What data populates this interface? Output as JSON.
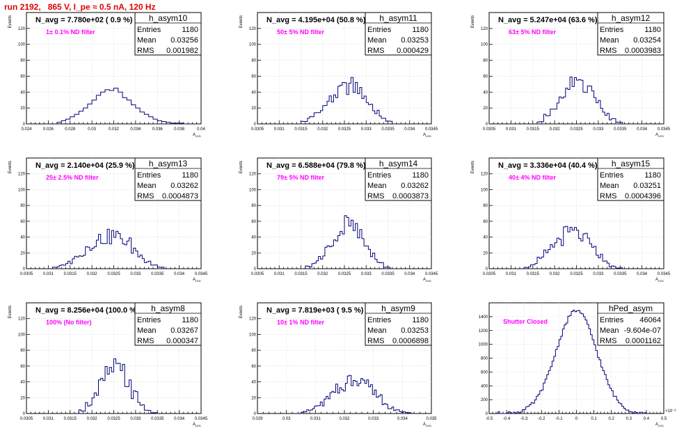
{
  "page": {
    "title": "run 2192,   865 V, I_pe ≈ 0.5 nA, 120 Hz"
  },
  "colors": {
    "title": "#e00000",
    "histogram": "#00007a",
    "annotation": "#ff00ff",
    "grid": "#c8c8c8"
  },
  "chart_data": [
    {
      "type": "bar",
      "name": "h_asym10",
      "title": "N_avg = 7.780e+02 ( 0.9 %)",
      "annotation": "1± 0.1% ND filter",
      "xlabel": "A_LED",
      "ylabel": "Events",
      "xlim": [
        0.024,
        0.04
      ],
      "ylim": [
        0,
        140
      ],
      "xticks": [
        "0.024",
        "0.026",
        "0.028",
        "0.03",
        "0.032",
        "0.034",
        "0.036",
        "0.038",
        "0.04"
      ],
      "yticks": [
        "0",
        "20",
        "40",
        "60",
        "80",
        "100",
        "120"
      ],
      "x_scale_exponent": "",
      "stats": {
        "entries": "1180",
        "mean": "0.03256",
        "rms": "0.001982"
      },
      "bin_edges": [
        0.0268,
        0.0272,
        0.0276,
        0.028,
        0.0284,
        0.0288,
        0.0292,
        0.0296,
        0.03,
        0.0304,
        0.0308,
        0.0312,
        0.0316,
        0.032,
        0.0324,
        0.0328,
        0.0332,
        0.0336,
        0.034,
        0.0344,
        0.0348,
        0.0352,
        0.0356,
        0.036,
        0.0364,
        0.0368,
        0.0372,
        0.0376,
        0.038,
        0.0384,
        0.0388
      ],
      "counts": [
        2,
        4,
        6,
        9,
        12,
        16,
        20,
        25,
        30,
        36,
        40,
        43,
        42,
        45,
        40,
        33,
        30,
        24,
        20,
        15,
        12,
        9,
        6,
        4,
        3,
        2,
        1,
        1,
        1,
        0
      ]
    },
    {
      "type": "bar",
      "name": "h_asym11",
      "title": "N_avg = 4.195e+04 (50.8 %)",
      "annotation": "50± 5% ND filter",
      "xlabel": "A_LED",
      "ylabel": "Events",
      "xlim": [
        0.0305,
        0.0345
      ],
      "ylim": [
        0,
        140
      ],
      "xticks": [
        "0.0305",
        "0.031",
        "0.0315",
        "0.032",
        "0.0325",
        "0.033",
        "0.0335",
        "0.034",
        "0.0345"
      ],
      "yticks": [
        "0",
        "20",
        "40",
        "60",
        "80",
        "100",
        "120"
      ],
      "x_scale_exponent": "",
      "stats": {
        "entries": "1180",
        "mean": "0.03253",
        "rms": "0.000429"
      },
      "bin_edges": [
        0.0315,
        0.03165,
        0.0318,
        0.03195,
        0.0321,
        0.03225,
        0.0324,
        0.03255,
        0.0327,
        0.03285,
        0.033,
        0.03315,
        0.0333,
        0.03345,
        0.0336
      ],
      "counts": [
        3,
        8,
        14,
        22,
        30,
        38,
        44,
        48,
        46,
        38,
        26,
        16,
        8,
        3
      ],
      "spiky": true
    },
    {
      "type": "bar",
      "name": "h_asym12",
      "title": "N_avg = 5.247e+04 (63.6 %)",
      "annotation": "63± 5% ND filter",
      "xlabel": "A_LED",
      "ylabel": "Events",
      "xlim": [
        0.0305,
        0.0345
      ],
      "ylim": [
        0,
        140
      ],
      "xticks": [
        "0.0305",
        "0.031",
        "0.0315",
        "0.032",
        "0.0325",
        "0.033",
        "0.0335",
        "0.034",
        "0.0345"
      ],
      "yticks": [
        "0",
        "20",
        "40",
        "60",
        "80",
        "100",
        "120"
      ],
      "x_scale_exponent": "",
      "stats": {
        "entries": "1180",
        "mean": "0.03254",
        "rms": "0.0003983"
      },
      "bin_edges": [
        0.0316,
        0.03175,
        0.0319,
        0.03205,
        0.0322,
        0.03235,
        0.0325,
        0.03265,
        0.0328,
        0.03295,
        0.0331,
        0.03325,
        0.0334,
        0.03355
      ],
      "counts": [
        3,
        10,
        18,
        28,
        40,
        48,
        55,
        50,
        40,
        26,
        14,
        6,
        2
      ],
      "spiky": true
    },
    {
      "type": "bar",
      "name": "h_asym13",
      "title": "N_avg = 2.140e+04 (25.9 %)",
      "annotation": "25± 2.5% ND filter",
      "xlabel": "A_LED",
      "ylabel": "Events",
      "xlim": [
        0.0305,
        0.0345
      ],
      "ylim": [
        0,
        140
      ],
      "xticks": [
        "0.0305",
        "0.031",
        "0.0315",
        "0.032",
        "0.0325",
        "0.033",
        "0.0335",
        "0.034",
        "0.0345"
      ],
      "yticks": [
        "0",
        "20",
        "40",
        "60",
        "80",
        "100",
        "120"
      ],
      "x_scale_exponent": "",
      "stats": {
        "entries": "1180",
        "mean": "0.03262",
        "rms": "0.0004873"
      },
      "bin_edges": [
        0.0311,
        0.03125,
        0.0314,
        0.03155,
        0.0317,
        0.03185,
        0.032,
        0.03215,
        0.0323,
        0.03245,
        0.0326,
        0.03275,
        0.0329,
        0.03305,
        0.0332,
        0.03335,
        0.0335,
        0.03365
      ],
      "counts": [
        2,
        4,
        8,
        14,
        20,
        28,
        34,
        38,
        40,
        42,
        38,
        32,
        24,
        16,
        10,
        5,
        2
      ],
      "spiky": true
    },
    {
      "type": "bar",
      "name": "h_asym14",
      "title": "N_avg = 6.588e+04 (79.8 %)",
      "annotation": "79± 5% ND filter",
      "xlabel": "A_LED",
      "ylabel": "Events",
      "xlim": [
        0.0305,
        0.0345
      ],
      "ylim": [
        0,
        140
      ],
      "xticks": [
        "0.0305",
        "0.031",
        "0.0315",
        "0.032",
        "0.0325",
        "0.033",
        "0.0335",
        "0.034",
        "0.0345"
      ],
      "yticks": [
        "0",
        "20",
        "40",
        "60",
        "80",
        "100",
        "120"
      ],
      "x_scale_exponent": "",
      "stats": {
        "entries": "1180",
        "mean": "0.03262",
        "rms": "0.0003873"
      },
      "bin_edges": [
        0.0316,
        0.03175,
        0.0319,
        0.03205,
        0.0322,
        0.03235,
        0.0325,
        0.03265,
        0.0328,
        0.03295,
        0.0331,
        0.03325,
        0.0334,
        0.03355
      ],
      "counts": [
        3,
        8,
        16,
        26,
        38,
        48,
        56,
        50,
        40,
        28,
        16,
        7,
        2
      ],
      "spiky": true
    },
    {
      "type": "bar",
      "name": "h_asym15",
      "title": "N_avg = 3.336e+04 (40.4 %)",
      "annotation": "40± 4% ND filter",
      "xlabel": "A_LED",
      "ylabel": "Events",
      "xlim": [
        0.0305,
        0.0345
      ],
      "ylim": [
        0,
        140
      ],
      "xticks": [
        "0.0305",
        "0.031",
        "0.0315",
        "0.032",
        "0.0325",
        "0.033",
        "0.0335",
        "0.034",
        "0.0345"
      ],
      "yticks": [
        "0",
        "20",
        "40",
        "60",
        "80",
        "100",
        "120"
      ],
      "x_scale_exponent": "",
      "stats": {
        "entries": "1180",
        "mean": "0.03251",
        "rms": "0.0004396"
      },
      "bin_edges": [
        0.0313,
        0.03145,
        0.0316,
        0.03175,
        0.0319,
        0.03205,
        0.0322,
        0.03235,
        0.0325,
        0.03265,
        0.0328,
        0.03295,
        0.0331,
        0.03325,
        0.0334,
        0.03355
      ],
      "counts": [
        2,
        6,
        12,
        20,
        30,
        38,
        44,
        46,
        42,
        36,
        26,
        16,
        8,
        3,
        1
      ],
      "spiky": true
    },
    {
      "type": "bar",
      "name": "h_asym8",
      "title": "N_avg = 8.256e+04 (100.0 %)",
      "annotation": "100% (No filter)",
      "xlabel": "A_LED",
      "ylabel": "Events",
      "xlim": [
        0.0305,
        0.0345
      ],
      "ylim": [
        0,
        140
      ],
      "xticks": [
        "0.0305",
        "0.031",
        "0.0315",
        "0.032",
        "0.0325",
        "0.033",
        "0.0335",
        "0.034",
        "0.0345"
      ],
      "yticks": [
        "0",
        "20",
        "40",
        "60",
        "80",
        "100",
        "120"
      ],
      "x_scale_exponent": "",
      "stats": {
        "entries": "1180",
        "mean": "0.03267",
        "rms": "0.000347"
      },
      "bin_edges": [
        0.0317,
        0.03185,
        0.032,
        0.03215,
        0.0323,
        0.03245,
        0.0326,
        0.03275,
        0.0329,
        0.03305,
        0.0332,
        0.03335,
        0.0335
      ],
      "counts": [
        4,
        12,
        24,
        38,
        50,
        58,
        52,
        40,
        24,
        12,
        4,
        1
      ],
      "spiky": true
    },
    {
      "type": "bar",
      "name": "h_asym9",
      "title": "N_avg = 7.819e+03 ( 9.5 %)",
      "annotation": "10± 1% ND filter",
      "xlabel": "A_LED",
      "ylabel": "Events",
      "xlim": [
        0.029,
        0.035
      ],
      "ylim": [
        0,
        140
      ],
      "xticks": [
        "0.029",
        "0.03",
        "0.031",
        "0.032",
        "0.033",
        "0.034",
        "0.035"
      ],
      "yticks": [
        "0",
        "20",
        "40",
        "60",
        "80",
        "100",
        "120"
      ],
      "x_scale_exponent": "",
      "stats": {
        "entries": "1180",
        "mean": "0.03253",
        "rms": "0.0006898"
      },
      "bin_edges": [
        0.0305,
        0.0307,
        0.0309,
        0.0311,
        0.0313,
        0.0315,
        0.0317,
        0.0319,
        0.0321,
        0.0323,
        0.0325,
        0.0327,
        0.0329,
        0.0331,
        0.0333,
        0.0335,
        0.0337,
        0.0339,
        0.0341,
        0.0343
      ],
      "counts": [
        2,
        4,
        8,
        12,
        18,
        24,
        30,
        36,
        42,
        46,
        44,
        38,
        30,
        22,
        14,
        8,
        4,
        2,
        1
      ],
      "spiky": true
    },
    {
      "type": "bar",
      "name": "hPed_asym",
      "title": "",
      "annotation": "Shutter Closed",
      "xlabel": "A_LED",
      "ylabel": "",
      "xlim": [
        -0.5,
        0.5
      ],
      "ylim": [
        0,
        1600
      ],
      "xticks": [
        "-0.5",
        "-0.4",
        "-0.3",
        "-0.2",
        "-0.1",
        "0",
        "0.1",
        "0.2",
        "0.3",
        "0.4",
        "0.5"
      ],
      "yticks": [
        "0",
        "200",
        "400",
        "600",
        "800",
        "1000",
        "1200",
        "1400"
      ],
      "x_scale_exponent": "×10⁻³",
      "stats": {
        "entries": "46064",
        "mean": "-9.604e-07",
        "rms": "0.0001162"
      },
      "gaussian": {
        "mean": 0.0,
        "sigma": 0.1162,
        "peak": 1490,
        "from": -0.45,
        "to": 0.4,
        "bins": 85
      }
    }
  ]
}
